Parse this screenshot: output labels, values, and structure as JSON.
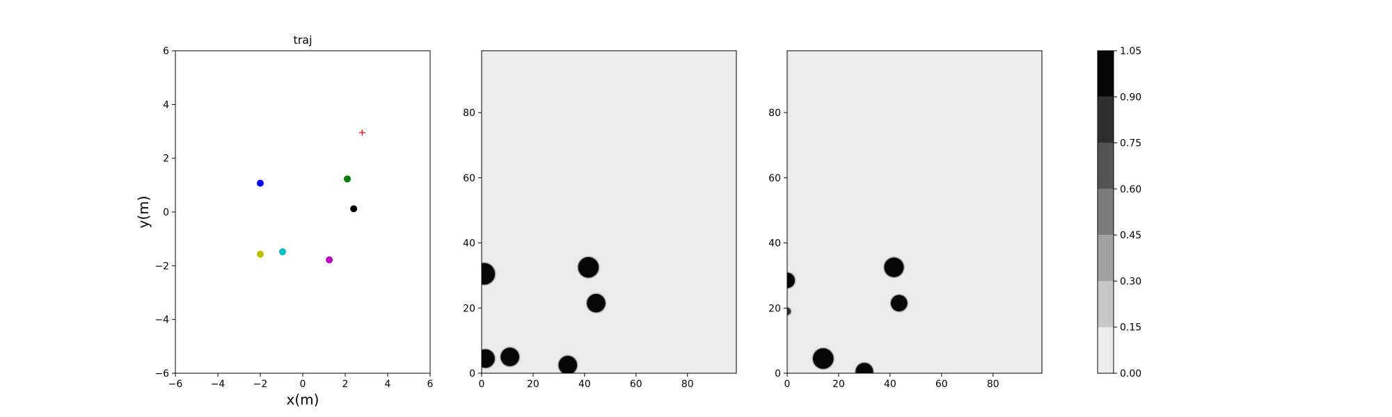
{
  "chart_data": [
    {
      "type": "scatter",
      "title": "traj",
      "xlabel": "x(m)",
      "ylabel": "y(m)",
      "xlim": [
        -6,
        6
      ],
      "ylim": [
        -6,
        6
      ],
      "xticks": [
        -6,
        -4,
        -2,
        0,
        2,
        4,
        6
      ],
      "yticks": [
        -6,
        -4,
        -2,
        0,
        2,
        4,
        6
      ],
      "grid": false,
      "points": [
        {
          "x": -2.0,
          "y": 1.07,
          "color": "#0000ff",
          "marker": "circle"
        },
        {
          "x": 2.1,
          "y": 1.23,
          "color": "#008000",
          "marker": "circle"
        },
        {
          "x": 2.4,
          "y": 0.12,
          "color": "#000000",
          "marker": "circle"
        },
        {
          "x": -2.0,
          "y": -1.57,
          "color": "#bfbf00",
          "marker": "circle"
        },
        {
          "x": -0.95,
          "y": -1.48,
          "color": "#00bfbf",
          "marker": "circle"
        },
        {
          "x": 1.25,
          "y": -1.78,
          "color": "#bf00bf",
          "marker": "circle"
        },
        {
          "x": 2.8,
          "y": 2.95,
          "color": "#ff0000",
          "marker": "plus"
        }
      ]
    },
    {
      "type": "heatmap",
      "title": "",
      "xlim": [
        0,
        99
      ],
      "ylim": [
        0,
        99
      ],
      "xticks": [
        0,
        20,
        40,
        60,
        80
      ],
      "yticks": [
        0,
        20,
        40,
        60,
        80
      ],
      "background_value": 0.06,
      "blobs": [
        {
          "x": 1,
          "y": 30.5,
          "r": 4.2,
          "value": 1.0
        },
        {
          "x": 1.5,
          "y": 4.5,
          "r": 3.6,
          "value": 1.0
        },
        {
          "x": 11,
          "y": 5,
          "r": 3.6,
          "value": 1.0
        },
        {
          "x": 33.5,
          "y": 2.5,
          "r": 3.6,
          "value": 1.0
        },
        {
          "x": 41.5,
          "y": 32.5,
          "r": 4.0,
          "value": 1.0
        },
        {
          "x": 44.5,
          "y": 21.5,
          "r": 3.6,
          "value": 1.0
        }
      ]
    },
    {
      "type": "heatmap",
      "title": "",
      "xlim": [
        0,
        99
      ],
      "ylim": [
        0,
        99
      ],
      "xticks": [
        0,
        20,
        40,
        60,
        80
      ],
      "yticks": [
        0,
        20,
        40,
        60,
        80
      ],
      "background_value": 0.06,
      "blobs": [
        {
          "x": 0,
          "y": 28.5,
          "r": 3.0,
          "value": 1.0
        },
        {
          "x": 0,
          "y": 19,
          "r": 1.4,
          "value": 0.8
        },
        {
          "x": 14,
          "y": 4.5,
          "r": 4.0,
          "value": 1.0
        },
        {
          "x": 30,
          "y": 0.5,
          "r": 3.4,
          "value": 0.95
        },
        {
          "x": 41.5,
          "y": 32.5,
          "r": 3.8,
          "value": 1.0
        },
        {
          "x": 43.5,
          "y": 21.5,
          "r": 3.2,
          "value": 1.0
        }
      ]
    },
    {
      "type": "colorbar",
      "levels": [
        "0.00",
        "0.15",
        "0.30",
        "0.45",
        "0.60",
        "0.75",
        "0.90",
        "1.05"
      ],
      "level_values": [
        0.0,
        0.15,
        0.3,
        0.45,
        0.6,
        0.75,
        0.9,
        1.05
      ],
      "band_colors": [
        "#ebebeb",
        "#c7c7c7",
        "#a2a2a2",
        "#7c7c7c",
        "#555555",
        "#2e2e2e",
        "#060606"
      ]
    }
  ]
}
